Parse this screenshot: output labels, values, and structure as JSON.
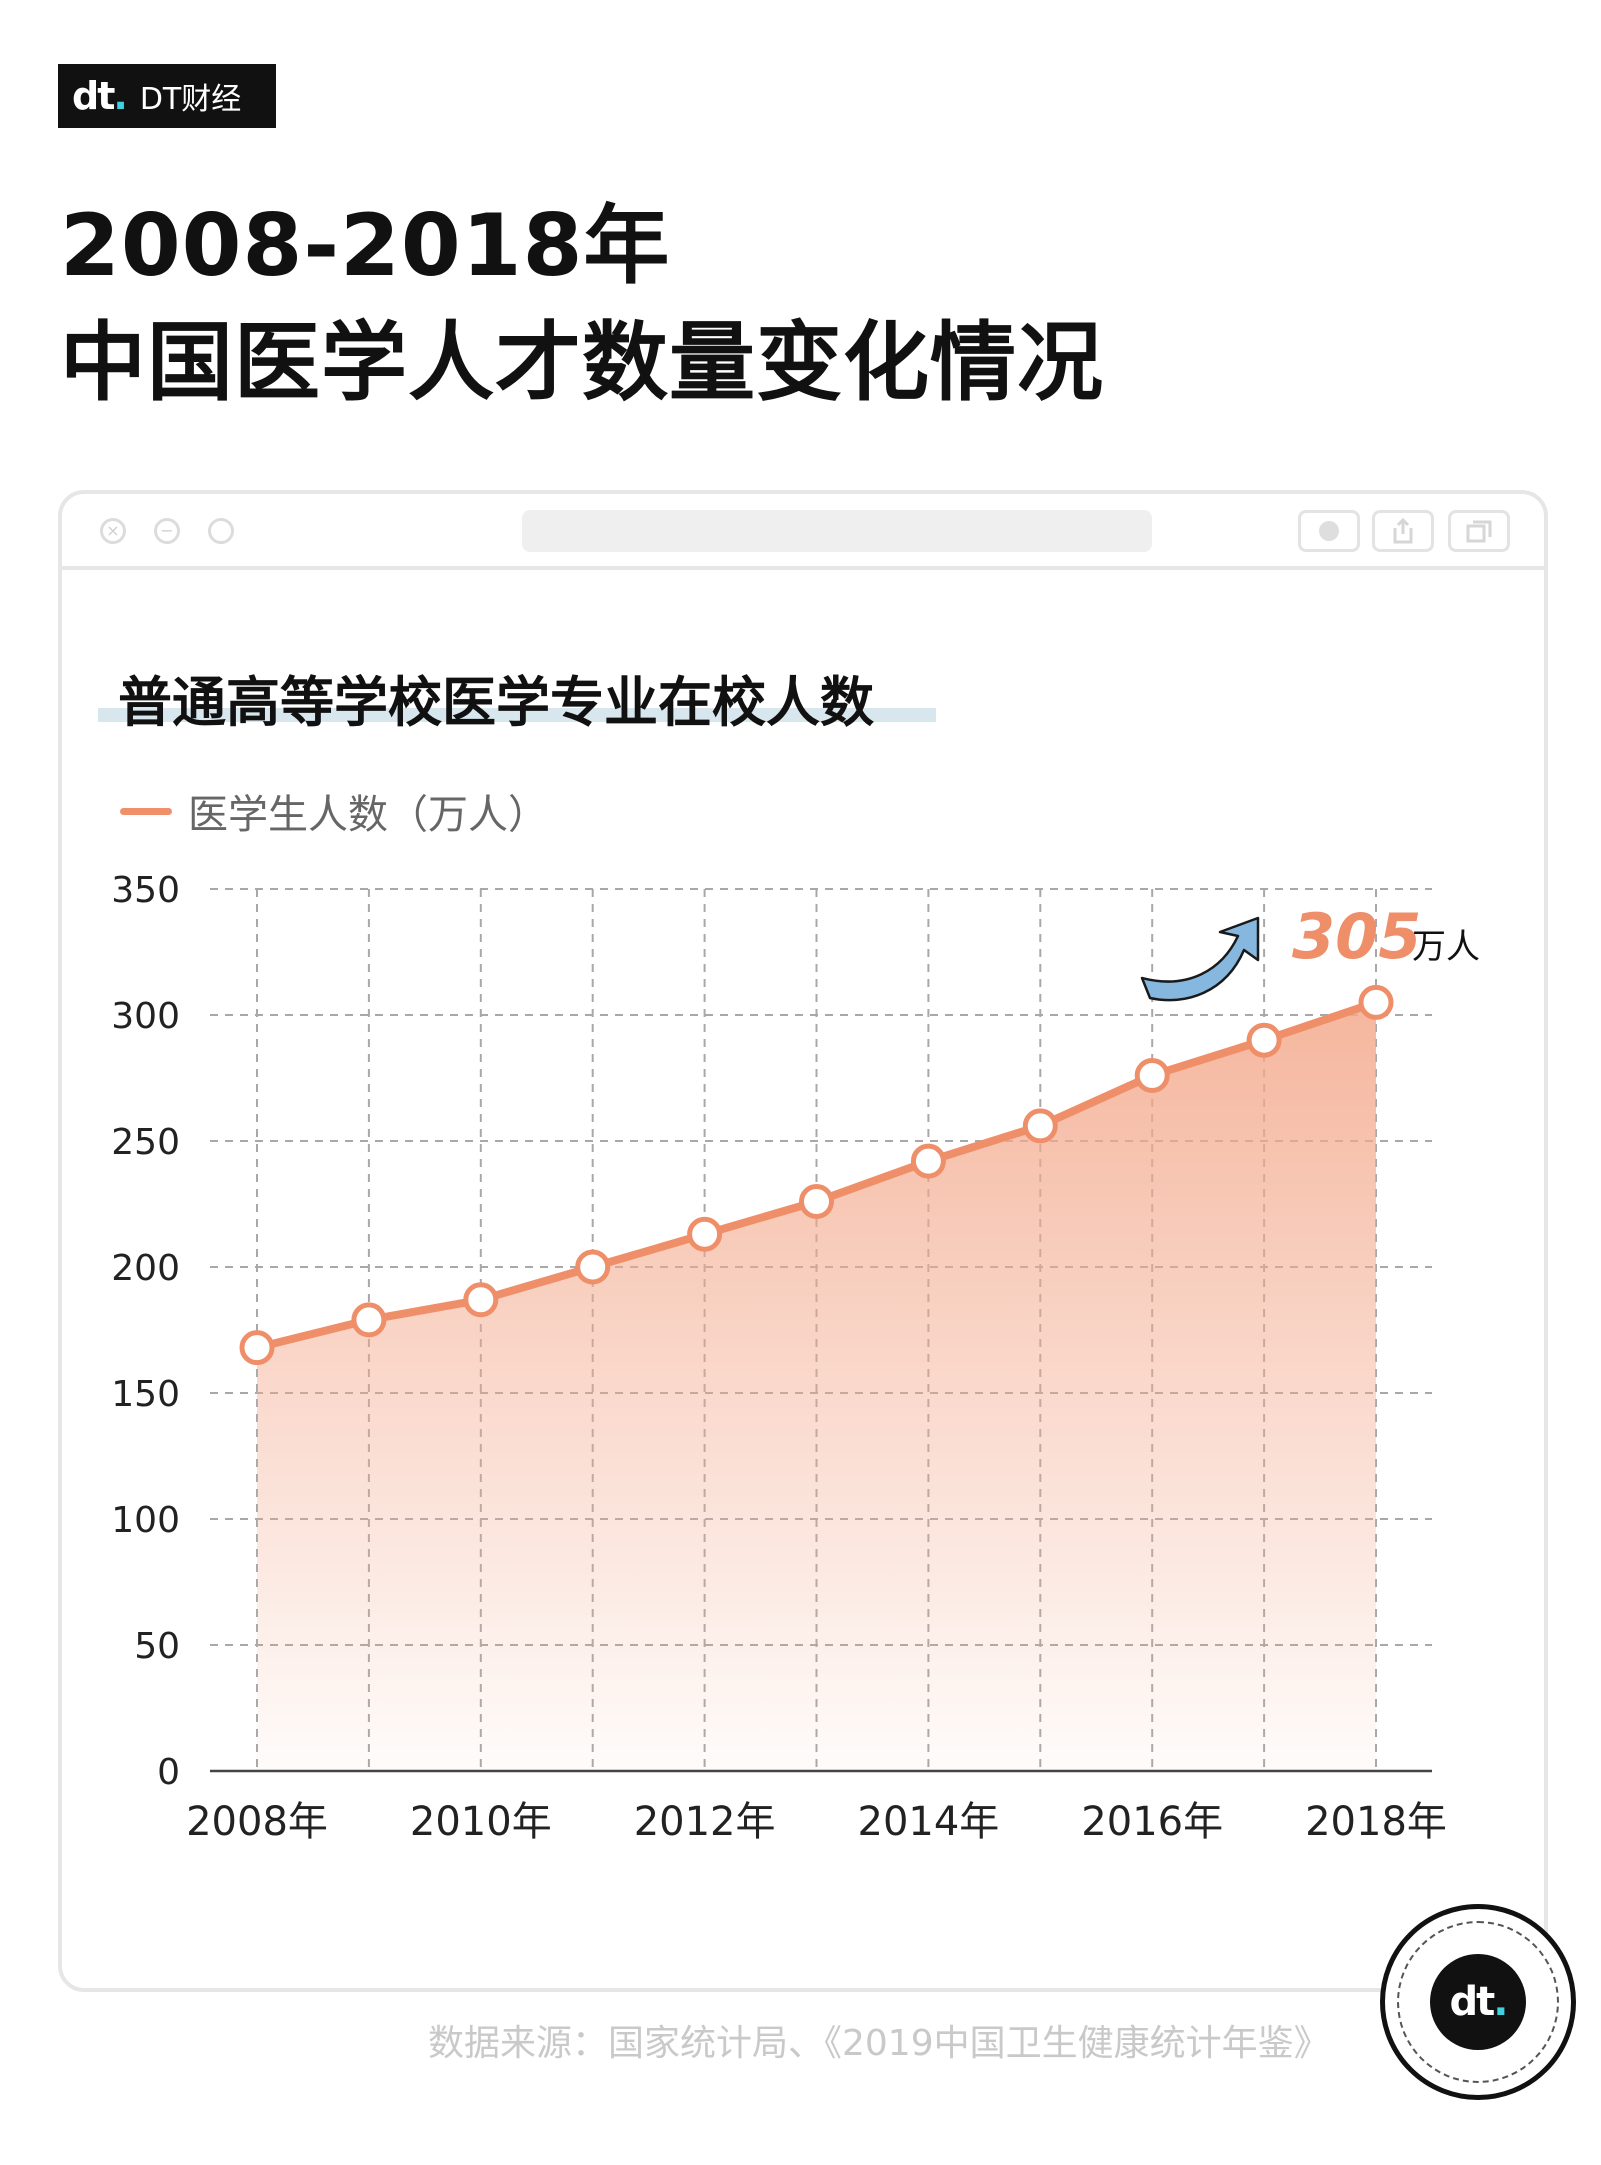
{
  "brand": {
    "name": "DT财经",
    "logo_text": "dt",
    "logo_dot": "."
  },
  "title": {
    "line1": "2008-2018年",
    "line2": "中国医学人才数量变化情况"
  },
  "colors": {
    "line": "#ef8f69",
    "area_top": "#f3a98c",
    "arrow": "#7fb2dc",
    "callout": "#ef8f69"
  },
  "chart_data": {
    "type": "area",
    "title": "普通高等学校医学专业在校人数",
    "x": [
      "2008年",
      "2009年",
      "2010年",
      "2011年",
      "2012年",
      "2013年",
      "2014年",
      "2015年",
      "2016年",
      "2017年",
      "2018年"
    ],
    "x_tick_labels": [
      "2008年",
      "",
      "2010年",
      "",
      "2012年",
      "",
      "2014年",
      "",
      "2016年",
      "",
      "2018年"
    ],
    "series": [
      {
        "name": "医学生人数（万人）",
        "values": [
          168,
          179,
          187,
          200,
          213,
          226,
          242,
          256,
          276,
          290,
          305
        ]
      }
    ],
    "ylim": [
      0,
      350
    ],
    "y_ticks": [
      0,
      50,
      100,
      150,
      200,
      250,
      300,
      350
    ],
    "grid": true,
    "legend": "top-left",
    "annotation": {
      "value": "305",
      "unit": "万人"
    }
  },
  "window_icons": [
    "close-icon",
    "minimize-icon",
    "maximize-icon",
    "record-icon",
    "share-icon",
    "copy-icon"
  ],
  "source": "数据来源：国家统计局、《2019中国卫生健康统计年鉴》"
}
